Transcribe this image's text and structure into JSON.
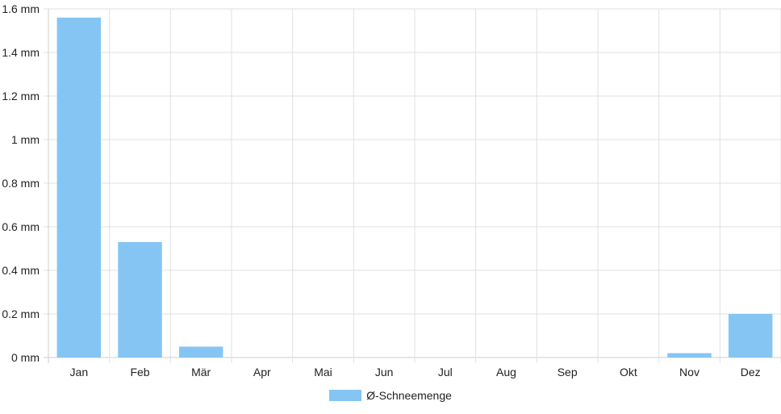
{
  "chart_data": {
    "type": "bar",
    "categories": [
      "Jan",
      "Feb",
      "Mär",
      "Apr",
      "Mai",
      "Jun",
      "Jul",
      "Aug",
      "Sep",
      "Okt",
      "Nov",
      "Dez"
    ],
    "series": [
      {
        "name": "Ø-Schneemenge",
        "values": [
          1.56,
          0.53,
          0.05,
          0,
          0,
          0,
          0,
          0,
          0,
          0,
          0.02,
          0.2
        ]
      }
    ],
    "y_unit": "mm",
    "y_ticks": [
      "0 mm",
      "0.2 mm",
      "0.4 mm",
      "0.6 mm",
      "0.8 mm",
      "1 mm",
      "1.2 mm",
      "1.4 mm",
      "1.6 mm"
    ],
    "ylim": [
      0,
      1.6
    ],
    "grid": true,
    "legend_position": "bottom-center",
    "colors": {
      "bar": "#85c5f3",
      "grid": "#e0e0e0",
      "axis": "#cfcfcf"
    }
  }
}
